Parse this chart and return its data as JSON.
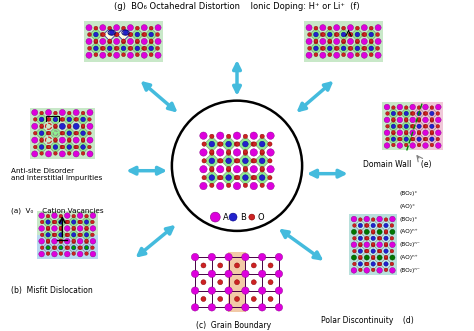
{
  "title_top": "(g)  BO₆ Octahedral Distortion    Ionic Doping: H⁺ or Li⁺  (f)",
  "label_a_main": "(a)  V₀    Cation Vacancies",
  "label_a_top": "Anti-site Disorder\nand Interstitial Impurities",
  "label_b": "(b)  Misfit Dislocation",
  "label_c": "(c)  Grain Boundary",
  "label_d": "Polar Discontinuity    (d)",
  "label_e": "Domain Wall    (e)",
  "legend_A": "A",
  "legend_B": "B",
  "legend_O": "O",
  "color_A": "#dd00dd",
  "color_B": "#2222cc",
  "color_O": "#cc2222",
  "color_green_bg": "#c8e8c8",
  "color_blue_bg": "#b8d8f0",
  "color_pink_bg": "#f0c8d8",
  "color_teal_bg": "#b8e0dc",
  "color_orange_bg": "#e8a060",
  "arrow_color": "#44bbdd",
  "bg_color": "#ffffff",
  "polar_labels": [
    "(BO₂)ⁿ⁻",
    "(AO)ⁿ⁺",
    "(BO₂)ⁿ⁻",
    "(AO)ⁿ⁺",
    "(BO₂)°",
    "(AO)°",
    "(BO₂)°"
  ]
}
